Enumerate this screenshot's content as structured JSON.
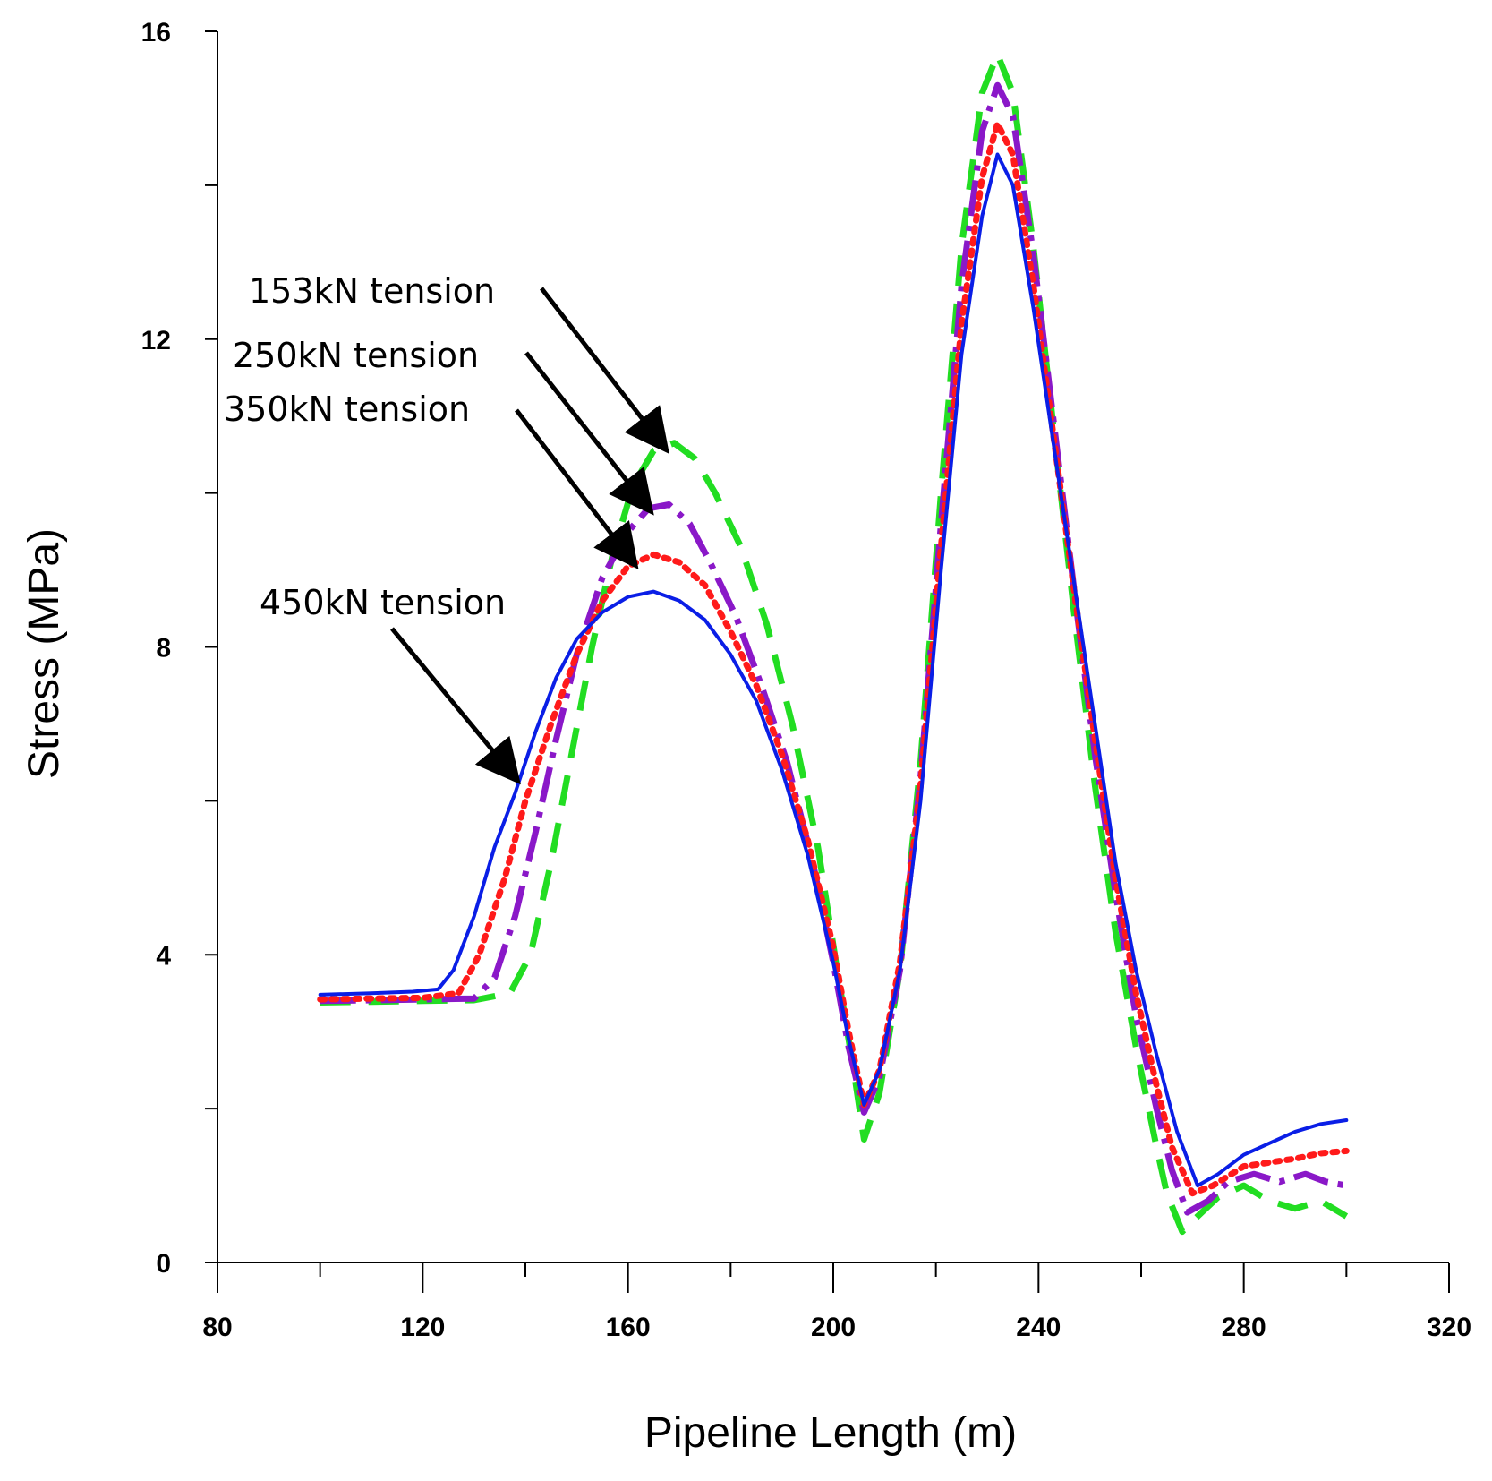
{
  "chart_data": {
    "type": "line",
    "title": "",
    "xlabel": "Pipeline Length (m)",
    "ylabel": "Stress (MPa)",
    "xlim": [
      80,
      320
    ],
    "ylim": [
      0,
      16
    ],
    "xticks": [
      80,
      120,
      160,
      200,
      240,
      280,
      320
    ],
    "yticks": [
      0,
      4,
      8,
      12,
      16
    ],
    "xtick_labels": [
      "80",
      "120",
      "160",
      "200",
      "240",
      "280",
      "320"
    ],
    "ytick_labels": [
      "0",
      "4",
      "8",
      "12",
      "16"
    ],
    "grid": false,
    "series": [
      {
        "name": "450kN tension",
        "color": "#0a1ee6",
        "style": "solid",
        "points": [
          [
            100,
            3.48
          ],
          [
            110,
            3.5
          ],
          [
            118,
            3.52
          ],
          [
            123,
            3.55
          ],
          [
            126,
            3.8
          ],
          [
            130,
            4.5
          ],
          [
            134,
            5.4
          ],
          [
            138,
            6.1
          ],
          [
            142,
            6.9
          ],
          [
            146,
            7.6
          ],
          [
            150,
            8.1
          ],
          [
            155,
            8.45
          ],
          [
            160,
            8.65
          ],
          [
            165,
            8.72
          ],
          [
            170,
            8.6
          ],
          [
            175,
            8.35
          ],
          [
            180,
            7.9
          ],
          [
            185,
            7.3
          ],
          [
            190,
            6.4
          ],
          [
            195,
            5.3
          ],
          [
            200,
            3.9
          ],
          [
            203,
            2.9
          ],
          [
            206,
            2.05
          ],
          [
            209,
            2.5
          ],
          [
            213,
            3.8
          ],
          [
            217,
            6.0
          ],
          [
            221,
            9.0
          ],
          [
            225,
            11.8
          ],
          [
            229,
            13.6
          ],
          [
            232,
            14.4
          ],
          [
            235,
            14.0
          ],
          [
            239,
            12.4
          ],
          [
            243,
            10.6
          ],
          [
            247,
            8.8
          ],
          [
            251,
            7.0
          ],
          [
            255,
            5.2
          ],
          [
            259,
            3.8
          ],
          [
            263,
            2.7
          ],
          [
            267,
            1.7
          ],
          [
            271,
            1.0
          ],
          [
            275,
            1.15
          ],
          [
            280,
            1.4
          ],
          [
            285,
            1.55
          ],
          [
            290,
            1.7
          ],
          [
            295,
            1.8
          ],
          [
            300,
            1.85
          ]
        ]
      },
      {
        "name": "350kN tension",
        "color": "#ff1a1a",
        "style": "dotted",
        "points": [
          [
            100,
            3.42
          ],
          [
            110,
            3.43
          ],
          [
            120,
            3.44
          ],
          [
            127,
            3.5
          ],
          [
            131,
            4.0
          ],
          [
            136,
            5.0
          ],
          [
            140,
            6.0
          ],
          [
            145,
            7.0
          ],
          [
            150,
            7.9
          ],
          [
            155,
            8.6
          ],
          [
            160,
            9.05
          ],
          [
            165,
            9.2
          ],
          [
            170,
            9.1
          ],
          [
            175,
            8.8
          ],
          [
            180,
            8.2
          ],
          [
            185,
            7.5
          ],
          [
            190,
            6.6
          ],
          [
            195,
            5.5
          ],
          [
            200,
            4.1
          ],
          [
            203,
            3.0
          ],
          [
            206,
            2.05
          ],
          [
            209,
            2.5
          ],
          [
            213,
            3.9
          ],
          [
            217,
            6.2
          ],
          [
            221,
            9.3
          ],
          [
            225,
            12.2
          ],
          [
            229,
            14.1
          ],
          [
            232,
            14.8
          ],
          [
            235,
            14.4
          ],
          [
            239,
            12.7
          ],
          [
            243,
            10.7
          ],
          [
            247,
            8.7
          ],
          [
            251,
            6.8
          ],
          [
            255,
            5.0
          ],
          [
            259,
            3.5
          ],
          [
            263,
            2.3
          ],
          [
            266,
            1.5
          ],
          [
            270,
            0.9
          ],
          [
            274,
            1.0
          ],
          [
            280,
            1.25
          ],
          [
            285,
            1.3
          ],
          [
            290,
            1.35
          ],
          [
            295,
            1.42
          ],
          [
            300,
            1.45
          ]
        ]
      },
      {
        "name": "250kN tension",
        "color": "#8a18c8",
        "style": "dashdot",
        "points": [
          [
            100,
            3.4
          ],
          [
            110,
            3.41
          ],
          [
            120,
            3.42
          ],
          [
            130,
            3.43
          ],
          [
            134,
            3.7
          ],
          [
            138,
            4.5
          ],
          [
            142,
            5.6
          ],
          [
            146,
            6.8
          ],
          [
            150,
            7.9
          ],
          [
            155,
            8.9
          ],
          [
            160,
            9.5
          ],
          [
            164,
            9.8
          ],
          [
            168,
            9.85
          ],
          [
            172,
            9.6
          ],
          [
            176,
            9.1
          ],
          [
            181,
            8.4
          ],
          [
            186,
            7.5
          ],
          [
            191,
            6.5
          ],
          [
            196,
            5.2
          ],
          [
            200,
            3.9
          ],
          [
            203,
            2.8
          ],
          [
            206,
            1.95
          ],
          [
            209,
            2.4
          ],
          [
            213,
            3.8
          ],
          [
            217,
            6.3
          ],
          [
            221,
            9.6
          ],
          [
            225,
            12.7
          ],
          [
            229,
            14.7
          ],
          [
            232,
            15.3
          ],
          [
            235,
            14.9
          ],
          [
            239,
            13.1
          ],
          [
            243,
            10.9
          ],
          [
            247,
            8.7
          ],
          [
            251,
            6.6
          ],
          [
            255,
            4.8
          ],
          [
            259,
            3.2
          ],
          [
            263,
            2.0
          ],
          [
            266,
            1.2
          ],
          [
            269,
            0.65
          ],
          [
            273,
            0.8
          ],
          [
            277,
            1.05
          ],
          [
            282,
            1.15
          ],
          [
            287,
            1.05
          ],
          [
            292,
            1.15
          ],
          [
            296,
            1.05
          ],
          [
            300,
            1.0
          ]
        ]
      },
      {
        "name": "153kN tension",
        "color": "#22dd22",
        "style": "dashed",
        "points": [
          [
            100,
            3.38
          ],
          [
            110,
            3.39
          ],
          [
            120,
            3.4
          ],
          [
            130,
            3.41
          ],
          [
            137,
            3.5
          ],
          [
            141,
            4.0
          ],
          [
            145,
            5.2
          ],
          [
            149,
            6.6
          ],
          [
            153,
            8.0
          ],
          [
            157,
            9.2
          ],
          [
            161,
            10.1
          ],
          [
            165,
            10.55
          ],
          [
            169,
            10.65
          ],
          [
            173,
            10.45
          ],
          [
            177,
            10.0
          ],
          [
            182,
            9.3
          ],
          [
            187,
            8.3
          ],
          [
            192,
            7.0
          ],
          [
            197,
            5.4
          ],
          [
            201,
            3.7
          ],
          [
            204,
            2.5
          ],
          [
            206,
            1.6
          ],
          [
            209,
            2.2
          ],
          [
            213,
            3.8
          ],
          [
            217,
            6.5
          ],
          [
            221,
            10.0
          ],
          [
            225,
            13.2
          ],
          [
            229,
            15.2
          ],
          [
            232,
            15.7
          ],
          [
            235,
            15.2
          ],
          [
            239,
            13.2
          ],
          [
            243,
            10.8
          ],
          [
            247,
            8.4
          ],
          [
            251,
            6.2
          ],
          [
            255,
            4.3
          ],
          [
            259,
            2.8
          ],
          [
            263,
            1.5
          ],
          [
            265,
            0.9
          ],
          [
            268,
            0.4
          ],
          [
            271,
            0.6
          ],
          [
            275,
            0.85
          ],
          [
            280,
            1.0
          ],
          [
            285,
            0.8
          ],
          [
            290,
            0.7
          ],
          [
            295,
            0.8
          ],
          [
            300,
            0.6
          ]
        ]
      }
    ],
    "annotations": [
      {
        "text": "153kN tension",
        "target": "153kN tension",
        "arrow_to": [
          167,
          10.6
        ]
      },
      {
        "text": "250kN tension",
        "target": "250kN tension",
        "arrow_to": [
          164,
          9.8
        ]
      },
      {
        "text": "350kN tension",
        "target": "350kN tension",
        "arrow_to": [
          161,
          9.1
        ]
      },
      {
        "text": "450kN tension",
        "target": "450kN tension",
        "arrow_to": [
          138,
          6.3
        ]
      }
    ]
  }
}
